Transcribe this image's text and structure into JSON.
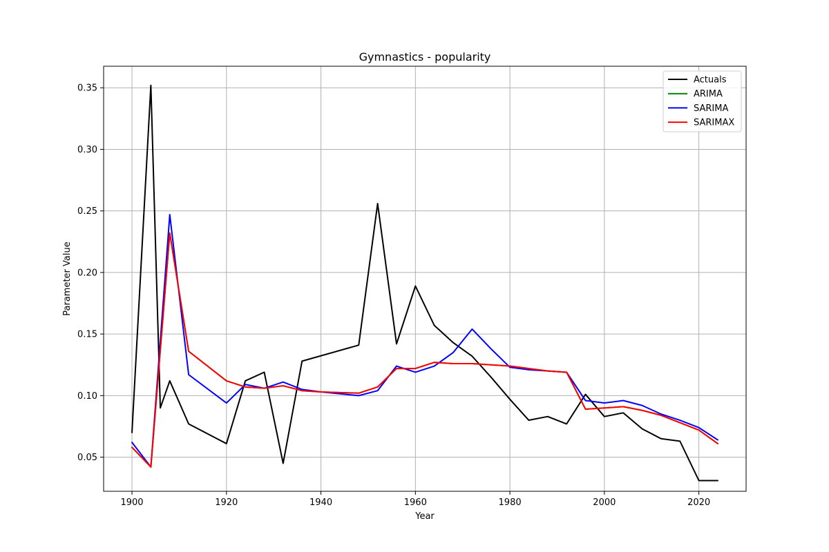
{
  "chart_data": {
    "type": "line",
    "title": "Gymnastics - popularity",
    "xlabel": "Year",
    "ylabel": "Parameter Value",
    "xlim": [
      1894,
      2030
    ],
    "ylim": [
      0.0223,
      0.3675
    ],
    "xticks": [
      1900,
      1920,
      1940,
      1960,
      1980,
      2000,
      2020
    ],
    "yticks": [
      0.05,
      0.1,
      0.15,
      0.2,
      0.25,
      0.3,
      0.35
    ],
    "ytick_labels": [
      "0.05",
      "0.10",
      "0.15",
      "0.20",
      "0.25",
      "0.30",
      "0.35"
    ],
    "grid": true,
    "legend_position": "top-right",
    "series": [
      {
        "name": "Actuals",
        "color": "#000000",
        "x": [
          1900,
          1904,
          1906,
          1908,
          1912,
          1920,
          1924,
          1928,
          1932,
          1936,
          1948,
          1952,
          1956,
          1960,
          1964,
          1968,
          1972,
          1976,
          1980,
          1984,
          1988,
          1992,
          1996,
          2000,
          2004,
          2008,
          2012,
          2016,
          2020,
          2024
        ],
        "y": [
          0.07,
          0.352,
          0.09,
          0.112,
          0.077,
          0.061,
          0.112,
          0.119,
          0.045,
          0.128,
          0.141,
          0.256,
          0.142,
          0.189,
          0.157,
          0.143,
          0.132,
          0.115,
          0.097,
          0.08,
          0.083,
          0.077,
          0.101,
          0.083,
          0.086,
          0.073,
          0.065,
          0.063,
          0.031,
          0.031
        ]
      },
      {
        "name": "ARIMA",
        "color": "#008000",
        "x": [
          1900,
          1904,
          1908,
          1912,
          1920,
          1924,
          1928,
          1932,
          1936,
          1940,
          1948,
          1952,
          1956,
          1960,
          1964,
          1968,
          1972,
          1976,
          1980,
          1984,
          1988,
          1992,
          1996,
          2000,
          2004,
          2008,
          2012,
          2016,
          2020,
          2024
        ],
        "y": [
          0.058,
          0.042,
          0.232,
          0.136,
          0.112,
          0.107,
          0.106,
          0.108,
          0.104,
          0.103,
          0.102,
          0.107,
          0.122,
          0.122,
          0.127,
          0.126,
          0.126,
          0.125,
          0.124,
          0.122,
          0.12,
          0.119,
          0.089,
          0.09,
          0.091,
          0.088,
          0.084,
          0.078,
          0.072,
          0.061
        ]
      },
      {
        "name": "SARIMA",
        "color": "#0000ff",
        "x": [
          1900,
          1904,
          1908,
          1912,
          1920,
          1924,
          1928,
          1932,
          1936,
          1940,
          1948,
          1952,
          1956,
          1960,
          1964,
          1968,
          1972,
          1976,
          1980,
          1984,
          1988,
          1992,
          1996,
          2000,
          2004,
          2008,
          2012,
          2016,
          2020,
          2024
        ],
        "y": [
          0.062,
          0.042,
          0.247,
          0.117,
          0.094,
          0.109,
          0.106,
          0.111,
          0.105,
          0.103,
          0.1,
          0.104,
          0.124,
          0.119,
          0.124,
          0.135,
          0.154,
          0.138,
          0.123,
          0.121,
          0.12,
          0.119,
          0.096,
          0.094,
          0.096,
          0.092,
          0.085,
          0.08,
          0.074,
          0.064
        ]
      },
      {
        "name": "SARIMAX",
        "color": "#ff0000",
        "x": [
          1900,
          1904,
          1908,
          1912,
          1920,
          1924,
          1928,
          1932,
          1936,
          1940,
          1948,
          1952,
          1956,
          1960,
          1964,
          1968,
          1972,
          1976,
          1980,
          1984,
          1988,
          1992,
          1996,
          2000,
          2004,
          2008,
          2012,
          2016,
          2020,
          2024
        ],
        "y": [
          0.058,
          0.042,
          0.232,
          0.136,
          0.112,
          0.107,
          0.106,
          0.108,
          0.104,
          0.103,
          0.102,
          0.107,
          0.122,
          0.122,
          0.127,
          0.126,
          0.126,
          0.125,
          0.124,
          0.122,
          0.12,
          0.119,
          0.089,
          0.09,
          0.091,
          0.088,
          0.084,
          0.078,
          0.072,
          0.061
        ]
      }
    ]
  }
}
